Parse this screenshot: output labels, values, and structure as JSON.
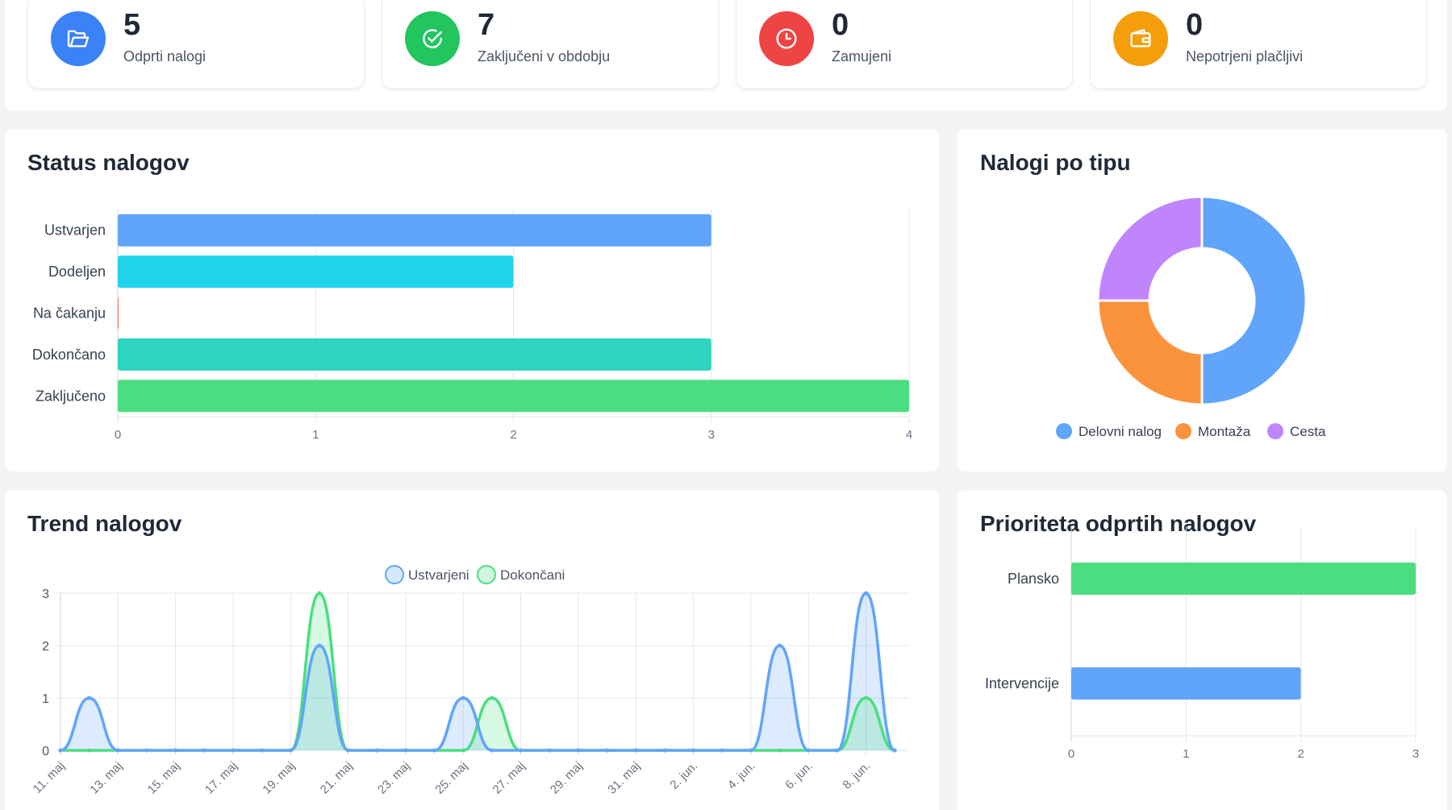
{
  "stats": [
    {
      "value": "5",
      "label": "Odprti nalogi",
      "color": "#3b82f6",
      "icon": "folder-open-icon"
    },
    {
      "value": "7",
      "label": "Zaključeni v obdobju",
      "color": "#22c55e",
      "icon": "check-circle-icon"
    },
    {
      "value": "0",
      "label": "Zamujeni",
      "color": "#ef4444",
      "icon": "clock-icon"
    },
    {
      "value": "0",
      "label": "Nepotrjeni plačljivi",
      "color": "#f59e0b",
      "icon": "wallet-icon"
    }
  ],
  "status_panel": {
    "title": "Status nalogov"
  },
  "type_panel": {
    "title": "Nalogi po tipu"
  },
  "trend_panel": {
    "title": "Trend nalogov"
  },
  "priority_panel": {
    "title": "Prioriteta odprtih nalogov"
  },
  "chart_data": [
    {
      "id": "status",
      "type": "bar",
      "orientation": "horizontal",
      "categories": [
        "Ustvarjen",
        "Dodeljen",
        "Na čakanju",
        "Dokončano",
        "Zaključeno"
      ],
      "values": [
        3,
        2,
        0,
        3,
        4
      ],
      "colors": [
        "#60a5fa",
        "#22d3ee",
        "#f87171",
        "#2dd4bf",
        "#4ade80"
      ],
      "xlim": [
        0,
        4
      ],
      "xticks": [
        "0",
        "1",
        "2",
        "3",
        "4"
      ],
      "grid": true
    },
    {
      "id": "type",
      "type": "pie",
      "variant": "doughnut",
      "labels": [
        "Delovni nalog",
        "Montaža",
        "Cesta"
      ],
      "values": [
        2,
        1,
        1
      ],
      "colors": [
        "#60a5fa",
        "#fb923c",
        "#c084fc"
      ],
      "legend": "bottom"
    },
    {
      "id": "trend",
      "type": "area",
      "x": [
        "11. maj",
        "12. maj",
        "13. maj",
        "14. maj",
        "15. maj",
        "16. maj",
        "17. maj",
        "18. maj",
        "19. maj",
        "20. maj",
        "21. maj",
        "22. maj",
        "23. maj",
        "24. maj",
        "25. maj",
        "26. maj",
        "27. maj",
        "28. maj",
        "29. maj",
        "30. maj",
        "31. maj",
        "1. jun.",
        "2. jun.",
        "3. jun.",
        "4. jun.",
        "5. jun.",
        "6. jun.",
        "7. jun.",
        "8. jun.",
        "9. jun."
      ],
      "xtick_labels": [
        "11. maj",
        "13. maj",
        "15. maj",
        "17. maj",
        "19. maj",
        "21. maj",
        "23. maj",
        "25. maj",
        "27. maj",
        "29. maj",
        "31. maj",
        "2. jun.",
        "4. jun.",
        "6. jun.",
        "8. jun."
      ],
      "series": [
        {
          "name": "Ustvarjeni",
          "color": "#60a5fa",
          "values": [
            0,
            1,
            0,
            0,
            0,
            0,
            0,
            0,
            0,
            2,
            0,
            0,
            0,
            0,
            1,
            0,
            0,
            0,
            0,
            0,
            0,
            0,
            0,
            0,
            0,
            2,
            0,
            0,
            3,
            0
          ]
        },
        {
          "name": "Dokončani",
          "color": "#4ade80",
          "values": [
            0,
            0,
            0,
            0,
            0,
            0,
            0,
            0,
            0,
            3,
            0,
            0,
            0,
            0,
            0,
            1,
            0,
            0,
            0,
            0,
            0,
            0,
            0,
            0,
            0,
            0,
            0,
            0,
            1,
            0
          ]
        }
      ],
      "ylim": [
        0,
        3
      ],
      "yticks": [
        "0",
        "1",
        "2",
        "3"
      ],
      "legend": "top",
      "grid": true
    },
    {
      "id": "priority",
      "type": "bar",
      "orientation": "horizontal",
      "categories": [
        "Plansko",
        "Intervencije"
      ],
      "values": [
        3,
        2
      ],
      "colors": [
        "#4ade80",
        "#60a5fa"
      ],
      "xlim": [
        0,
        3
      ],
      "xticks": [
        "0",
        "1",
        "2",
        "3"
      ],
      "grid": true
    }
  ]
}
